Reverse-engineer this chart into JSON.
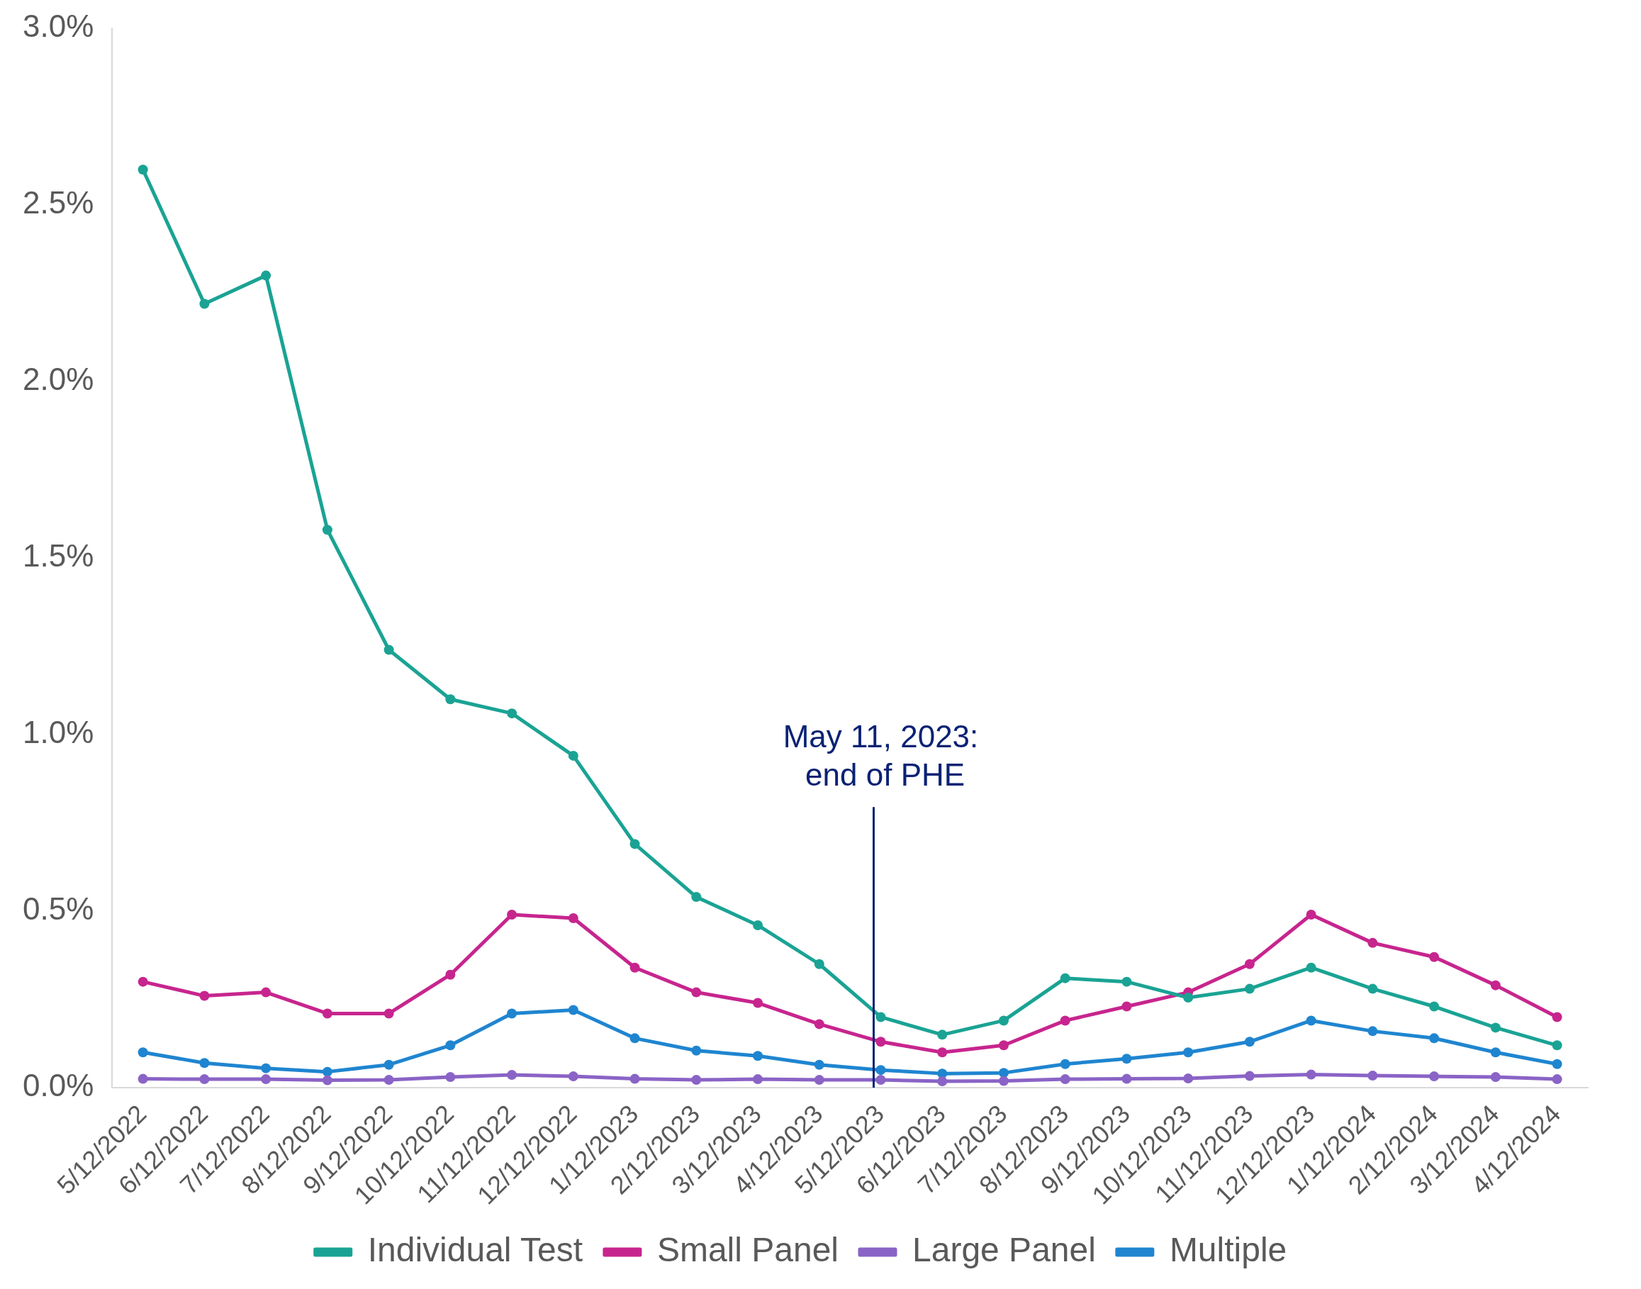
{
  "chart_data": {
    "type": "line",
    "categories": [
      "5/12/2022",
      "6/12/2022",
      "7/12/2022",
      "8/12/2022",
      "9/12/2022",
      "10/12/2022",
      "11/12/2022",
      "12/12/2022",
      "1/12/2023",
      "2/12/2023",
      "3/12/2023",
      "4/12/2023",
      "5/12/2023",
      "6/12/2023",
      "7/12/2023",
      "8/12/2023",
      "9/12/2023",
      "10/12/2023",
      "11/12/2023",
      "12/12/2023",
      "1/12/2024",
      "2/12/2024",
      "3/12/2024",
      "4/12/2024"
    ],
    "series": [
      {
        "name": "Individual Test",
        "color": "#1aa394",
        "values": [
          2.6,
          2.22,
          2.3,
          1.58,
          1.24,
          1.1,
          1.06,
          0.94,
          0.69,
          0.54,
          0.46,
          0.35,
          0.2,
          0.15,
          0.19,
          0.31,
          0.3,
          0.255,
          0.28,
          0.34,
          0.28,
          0.23,
          0.17,
          0.12
        ]
      },
      {
        "name": "Small Panel",
        "color": "#c7258e",
        "values": [
          0.3,
          0.26,
          0.27,
          0.21,
          0.21,
          0.32,
          0.49,
          0.48,
          0.34,
          0.27,
          0.24,
          0.18,
          0.13,
          0.1,
          0.12,
          0.19,
          0.23,
          0.27,
          0.35,
          0.49,
          0.41,
          0.37,
          0.29,
          0.2
        ]
      },
      {
        "name": "Large Panel",
        "color": "#8a63c6",
        "values": [
          0.025,
          0.024,
          0.024,
          0.021,
          0.022,
          0.03,
          0.036,
          0.032,
          0.025,
          0.022,
          0.024,
          0.022,
          0.022,
          0.018,
          0.019,
          0.024,
          0.025,
          0.026,
          0.033,
          0.037,
          0.034,
          0.032,
          0.03,
          0.024
        ]
      },
      {
        "name": "Multiple",
        "color": "#1f85d0",
        "values": [
          0.1,
          0.07,
          0.055,
          0.045,
          0.065,
          0.12,
          0.21,
          0.22,
          0.14,
          0.105,
          0.09,
          0.065,
          0.05,
          0.04,
          0.042,
          0.067,
          0.082,
          0.1,
          0.13,
          0.19,
          0.16,
          0.14,
          0.1,
          0.067
        ]
      }
    ],
    "ylim": [
      0,
      3
    ],
    "yticks": [
      {
        "value": 0,
        "label": "0.0%"
      },
      {
        "value": 0.5,
        "label": "0.5%"
      },
      {
        "value": 1,
        "label": "1.0%"
      },
      {
        "value": 1.5,
        "label": "1.5%"
      },
      {
        "value": 2,
        "label": "2.0%"
      },
      {
        "value": 2.5,
        "label": "2.5%"
      },
      {
        "value": 3,
        "label": "3.0%"
      }
    ],
    "ref_lines": [
      {
        "axis": "x",
        "value": "5/12/2023",
        "label": "May 11, 2023:\n end of PHE",
        "color": "#0b2274"
      }
    ],
    "grid": false,
    "legend": "bottom",
    "marker": "circle",
    "line_style": "solid"
  }
}
